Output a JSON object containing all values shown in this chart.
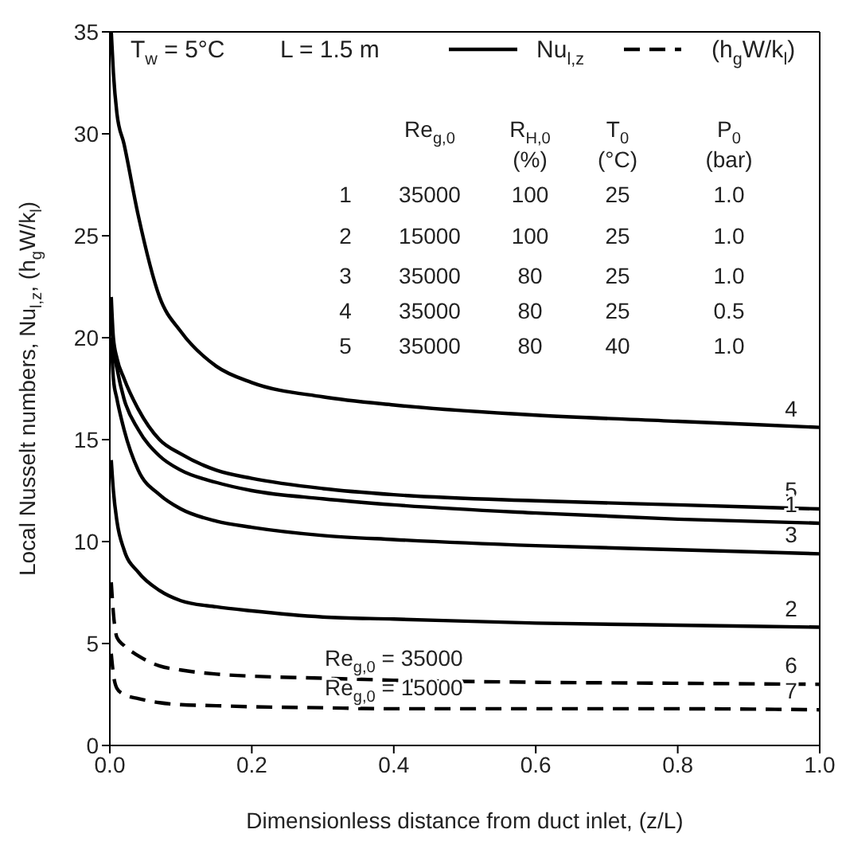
{
  "chart_data": {
    "type": "line",
    "xlabel": "Dimensionless distance from duct inlet, (z/L)",
    "ylabel": "Local Nusselt numbers, Nu$_{l,z}$, (h$_{g}$W/k$_{l}$)",
    "x": [
      0.002,
      0.005,
      0.01,
      0.02,
      0.04,
      0.07,
      0.1,
      0.15,
      0.2,
      0.3,
      0.4,
      0.6,
      0.8,
      1.0
    ],
    "series": [
      {
        "name": "4",
        "color": "#000000",
        "line_style": "solid",
        "values": [
          35,
          33,
          31,
          29.5,
          26,
          22,
          20.3,
          18.6,
          17.8,
          17.1,
          16.7,
          16.2,
          15.9,
          15.6
        ]
      },
      {
        "name": "5",
        "color": "#000000",
        "line_style": "solid",
        "values": [
          22,
          20,
          19,
          18,
          16.5,
          15,
          14.3,
          13.5,
          13.1,
          12.6,
          12.3,
          12.0,
          11.8,
          11.6
        ]
      },
      {
        "name": "1",
        "color": "#000000",
        "line_style": "solid",
        "values": [
          21,
          19.5,
          18.5,
          17,
          15.5,
          14.2,
          13.5,
          12.9,
          12.5,
          12.1,
          11.8,
          11.4,
          11.1,
          10.9
        ]
      },
      {
        "name": "3",
        "color": "#000000",
        "line_style": "solid",
        "values": [
          20,
          18,
          17,
          15.5,
          13.5,
          12.3,
          11.6,
          11,
          10.7,
          10.3,
          10.1,
          9.8,
          9.6,
          9.4
        ]
      },
      {
        "name": "2",
        "color": "#000000",
        "line_style": "solid",
        "values": [
          14,
          12.5,
          11,
          9.6,
          8.5,
          7.6,
          7.1,
          6.8,
          6.6,
          6.3,
          6.2,
          6.0,
          5.9,
          5.8
        ]
      },
      {
        "name": "6",
        "color": "#000000",
        "line_style": "dashed",
        "values": [
          8,
          6.5,
          5.3,
          4.9,
          4.4,
          3.9,
          3.7,
          3.5,
          3.4,
          3.3,
          3.2,
          3.1,
          3.05,
          3.0
        ]
      },
      {
        "name": "7",
        "color": "#000000",
        "line_style": "dashed",
        "values": [
          4.5,
          3.5,
          2.8,
          2.5,
          2.3,
          2.1,
          2.0,
          1.95,
          1.9,
          1.85,
          1.8,
          1.8,
          1.8,
          1.75
        ]
      }
    ],
    "xlim": [
      0,
      1.0
    ],
    "xticks": [
      {
        "value": 0,
        "label": "0.0"
      },
      {
        "value": 0.2,
        "label": "0.2"
      },
      {
        "value": 0.4,
        "label": "0.4"
      },
      {
        "value": 0.6,
        "label": "0.6"
      },
      {
        "value": 0.8,
        "label": "0.8"
      },
      {
        "value": 1.0,
        "label": "1.0"
      }
    ],
    "ylim": [
      0,
      35
    ],
    "yticks": [
      0,
      5,
      10,
      15,
      20,
      25,
      30,
      35
    ],
    "grid": false,
    "marker": "none",
    "annotations": [
      "T$_{w}$ = 5°C",
      "L = 1.5 m",
      "Nu$_{l,z}$",
      "(h$_{g}$W/k$_{l}$)",
      "Re$_{g,0}$",
      "R$_{H,0}$ (%)",
      "T$_{0}$ (°C)",
      "P$_{0}$ (bar)",
      "1 35000 100 25 1.0",
      "2 15000 100 25 1.0",
      "3 35000 80 25 1.0",
      "4 35000 80 25 0.5",
      "5 35000 80 40 1.0",
      {
        "text": "Re$_{g,0}$ = 35000",
        "x": 0.4,
        "y": 3.3
      },
      {
        "text": "Re$_{g,0}$ = 15000",
        "x": 0.4,
        "y": 1.85
      }
    ]
  }
}
